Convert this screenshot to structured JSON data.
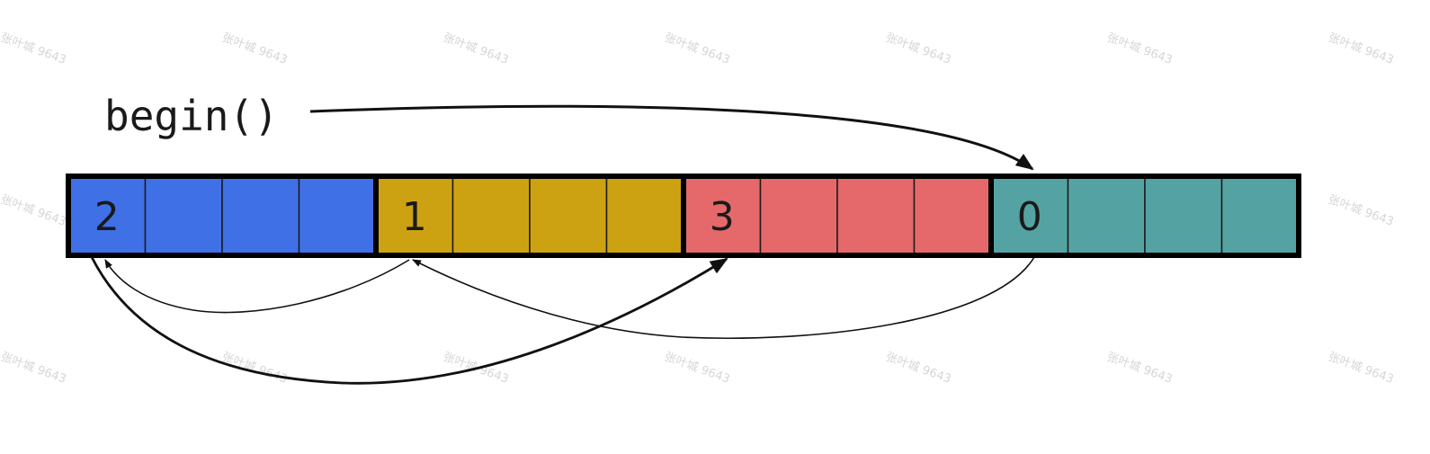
{
  "begin_label": "begin()",
  "blocks": [
    {
      "id": "blue",
      "number": "2",
      "color": "#4070e6"
    },
    {
      "id": "yellow",
      "number": "1",
      "color": "#cda212"
    },
    {
      "id": "red",
      "number": "3",
      "color": "#e5696a"
    },
    {
      "id": "teal",
      "number": "0",
      "color": "#54a3a2"
    }
  ],
  "slots_per_block": 4,
  "watermark_text": "张叶城 9643",
  "links": [
    {
      "from": "begin()",
      "to": "0"
    },
    {
      "from": "0",
      "to": "1"
    },
    {
      "from": "1",
      "to": "2"
    },
    {
      "from": "2",
      "to": "3"
    }
  ]
}
